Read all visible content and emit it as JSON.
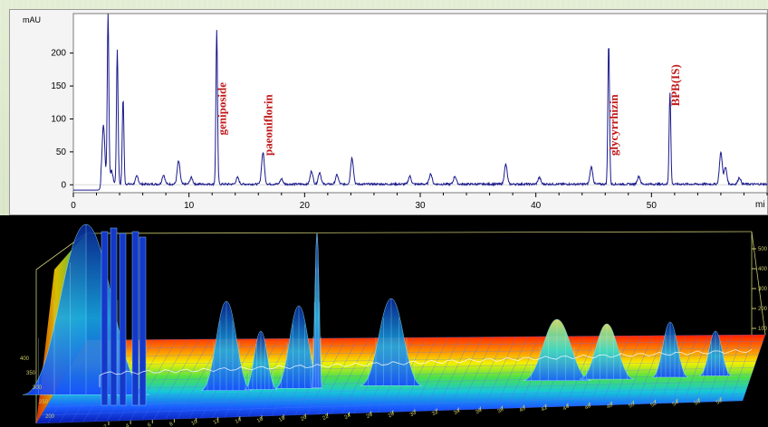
{
  "chart_data": [
    {
      "type": "line",
      "ylabel": "mAU",
      "xlabel": "mi",
      "xlim": [
        0,
        60
      ],
      "ylim": [
        -12,
        260
      ],
      "x_ticks": [
        0,
        10,
        20,
        30,
        40,
        50
      ],
      "y_ticks": [
        0,
        50,
        100,
        150,
        200
      ],
      "colors": {
        "line": "#1a1a8c",
        "annotation": "#c0181a"
      },
      "peaks": [
        {
          "x": 2.6,
          "y": 90
        },
        {
          "x": 3.0,
          "y": 260
        },
        {
          "x": 3.3,
          "y": 20
        },
        {
          "x": 3.8,
          "y": 205
        },
        {
          "x": 4.3,
          "y": 130
        },
        {
          "x": 5.5,
          "y": 12
        },
        {
          "x": 7.8,
          "y": 14
        },
        {
          "x": 9.1,
          "y": 35
        },
        {
          "x": 10.2,
          "y": 10
        },
        {
          "x": 12.4,
          "y": 235
        },
        {
          "x": 14.2,
          "y": 10
        },
        {
          "x": 16.4,
          "y": 48
        },
        {
          "x": 18.0,
          "y": 8
        },
        {
          "x": 20.6,
          "y": 20
        },
        {
          "x": 21.3,
          "y": 18
        },
        {
          "x": 22.8,
          "y": 14
        },
        {
          "x": 24.1,
          "y": 40
        },
        {
          "x": 29.1,
          "y": 12
        },
        {
          "x": 30.9,
          "y": 16
        },
        {
          "x": 33.0,
          "y": 12
        },
        {
          "x": 37.4,
          "y": 30
        },
        {
          "x": 40.3,
          "y": 10
        },
        {
          "x": 44.8,
          "y": 26
        },
        {
          "x": 46.3,
          "y": 215
        },
        {
          "x": 48.9,
          "y": 12
        },
        {
          "x": 51.6,
          "y": 140
        },
        {
          "x": 56.0,
          "y": 48
        },
        {
          "x": 56.4,
          "y": 25
        },
        {
          "x": 57.6,
          "y": 10
        }
      ],
      "annotations": [
        {
          "label": "geniposide",
          "x": 12.4
        },
        {
          "label": "paeoniflorin",
          "x": 16.4
        },
        {
          "label": "glycyrrhizin",
          "x": 46.3
        },
        {
          "label": "BPB(IS)",
          "x": 51.6
        }
      ]
    },
    {
      "type": "surface",
      "colors": {
        "background": "#000000",
        "axis": "#c8c870",
        "floor_hot": "#ff2a00",
        "floor_cold": "#1430ff"
      },
      "z_ticks": [
        100,
        200,
        300,
        400,
        500
      ],
      "wl_ticks": [
        400,
        350,
        300,
        250,
        200
      ],
      "time_ticks": [
        2,
        4,
        6,
        8,
        10,
        12,
        14,
        16,
        18,
        20,
        22,
        24,
        26,
        28,
        30,
        32,
        34,
        36,
        38,
        40,
        42,
        44,
        46,
        48,
        50,
        52,
        54,
        56,
        58
      ]
    }
  ]
}
